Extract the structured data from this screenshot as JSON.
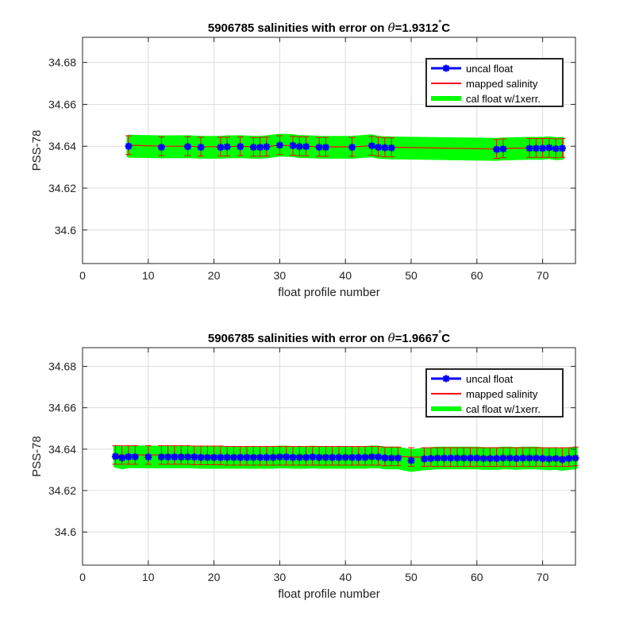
{
  "chart_data": [
    {
      "type": "line",
      "title": "5906785 salinities with error on θ=1.9312°C",
      "title_prefix": "5906785 salinities with error on ",
      "title_theta": "θ",
      "title_value": "=1.9312",
      "title_unit": "C",
      "xlabel": "float profile number",
      "ylabel": "PSS-78",
      "xlim": [
        0,
        75
      ],
      "ylim": [
        34.584,
        34.692
      ],
      "xticks": [
        0,
        10,
        20,
        30,
        40,
        50,
        60,
        70
      ],
      "yticks": [
        34.6,
        34.62,
        34.64,
        34.66,
        34.68
      ],
      "ytick_labels": [
        "34.6",
        "34.62",
        "34.64",
        "34.66",
        "34.68"
      ],
      "grid": true,
      "legend_position": "top-right",
      "series": [
        {
          "name": "uncal float",
          "color": "#0000ff",
          "marker": "asterisk",
          "x": [
            7,
            12,
            16,
            18,
            21,
            22,
            24,
            26,
            27,
            28,
            30,
            32,
            33,
            34,
            36,
            37,
            41,
            44,
            45,
            46,
            47,
            63,
            64,
            68,
            69,
            70,
            71,
            72,
            73
          ],
          "y": [
            34.64,
            34.6395,
            34.6398,
            34.6395,
            34.6395,
            34.6397,
            34.6398,
            34.6395,
            34.6395,
            34.6397,
            34.6405,
            34.6403,
            34.6398,
            34.6398,
            34.6395,
            34.6395,
            34.6395,
            34.6402,
            34.6395,
            34.6393,
            34.6392,
            34.6385,
            34.6387,
            34.639,
            34.639,
            34.639,
            34.6393,
            34.6388,
            34.639
          ]
        },
        {
          "name": "mapped salinity",
          "color": "#ff0000",
          "error": 0.0045,
          "x": [
            7,
            12,
            16,
            18,
            21,
            22,
            24,
            26,
            27,
            28,
            30,
            32,
            33,
            34,
            36,
            37,
            41,
            44,
            45,
            46,
            47,
            63,
            64,
            68,
            69,
            70,
            71,
            72,
            73
          ],
          "y": [
            34.6405,
            34.64,
            34.64,
            34.6398,
            34.6398,
            34.6398,
            34.64,
            34.6397,
            34.6397,
            34.6398,
            34.6405,
            34.6402,
            34.64,
            34.64,
            34.6397,
            34.6397,
            34.6397,
            34.6402,
            34.6398,
            34.6395,
            34.6395,
            34.6387,
            34.639,
            34.6392,
            34.6392,
            34.6392,
            34.6392,
            34.639,
            34.6392
          ]
        },
        {
          "name": "cal float w/1xerr.",
          "color": "#00ff00",
          "error": 0.0045,
          "x": [
            7,
            12,
            16,
            18,
            21,
            22,
            24,
            26,
            27,
            28,
            30,
            32,
            33,
            34,
            36,
            37,
            41,
            44,
            45,
            46,
            47,
            63,
            64,
            68,
            69,
            70,
            71,
            72,
            73
          ],
          "y": [
            34.64,
            34.6397,
            34.6398,
            34.6395,
            34.6395,
            34.6397,
            34.6398,
            34.6395,
            34.6395,
            34.6397,
            34.6405,
            34.6403,
            34.6398,
            34.6398,
            34.6395,
            34.6395,
            34.6395,
            34.6402,
            34.6395,
            34.6393,
            34.6392,
            34.6385,
            34.6387,
            34.639,
            34.639,
            34.639,
            34.6393,
            34.6388,
            34.639
          ]
        }
      ]
    },
    {
      "type": "line",
      "title": "5906785 salinities with error on θ=1.9667°C",
      "title_prefix": "5906785 salinities with error on ",
      "title_theta": "θ",
      "title_value": "=1.9667",
      "title_unit": "C",
      "xlabel": "float profile number",
      "ylabel": "PSS-78",
      "xlim": [
        0,
        75
      ],
      "ylim": [
        34.584,
        34.689
      ],
      "xticks": [
        0,
        10,
        20,
        30,
        40,
        50,
        60,
        70
      ],
      "yticks": [
        34.6,
        34.62,
        34.64,
        34.66,
        34.68
      ],
      "ytick_labels": [
        "34.6",
        "34.62",
        "34.64",
        "34.66",
        "34.68"
      ],
      "grid": true,
      "legend_position": "top-right",
      "series": [
        {
          "name": "uncal float",
          "color": "#0000ff",
          "marker": "asterisk",
          "x": [
            5,
            6,
            7,
            8,
            10,
            12,
            13,
            14,
            15,
            16,
            17,
            18,
            19,
            20,
            21,
            22,
            23,
            24,
            25,
            26,
            27,
            28,
            29,
            30,
            31,
            32,
            33,
            34,
            35,
            36,
            37,
            38,
            39,
            40,
            41,
            42,
            43,
            44,
            45,
            46,
            47,
            48,
            50,
            52,
            53,
            54,
            55,
            56,
            57,
            58,
            59,
            60,
            61,
            62,
            63,
            64,
            65,
            66,
            67,
            68,
            69,
            70,
            71,
            72,
            73,
            74,
            75
          ],
          "y": [
            34.6365,
            34.6358,
            34.6363,
            34.6363,
            34.6362,
            34.6362,
            34.6362,
            34.6362,
            34.6362,
            34.6362,
            34.6362,
            34.636,
            34.636,
            34.636,
            34.636,
            34.636,
            34.636,
            34.636,
            34.636,
            34.636,
            34.636,
            34.636,
            34.636,
            34.6362,
            34.6362,
            34.636,
            34.636,
            34.636,
            34.6362,
            34.636,
            34.636,
            34.636,
            34.636,
            34.636,
            34.636,
            34.636,
            34.636,
            34.6363,
            34.6362,
            34.6358,
            34.6357,
            34.6357,
            34.6345,
            34.6353,
            34.6355,
            34.6357,
            34.6357,
            34.6357,
            34.6357,
            34.6357,
            34.6357,
            34.6357,
            34.6355,
            34.6355,
            34.6355,
            34.6357,
            34.6357,
            34.6355,
            34.6357,
            34.6357,
            34.6357,
            34.6355,
            34.6353,
            34.6355,
            34.635,
            34.6355,
            34.6357
          ]
        },
        {
          "name": "mapped salinity",
          "color": "#ff0000",
          "error": 0.0045,
          "x": [
            5,
            6,
            7,
            8,
            10,
            12,
            13,
            14,
            15,
            16,
            17,
            18,
            19,
            20,
            21,
            22,
            23,
            24,
            25,
            26,
            27,
            28,
            29,
            30,
            31,
            32,
            33,
            34,
            35,
            36,
            37,
            38,
            39,
            40,
            41,
            42,
            43,
            44,
            45,
            46,
            47,
            48,
            50,
            52,
            53,
            54,
            55,
            56,
            57,
            58,
            59,
            60,
            61,
            62,
            63,
            64,
            65,
            66,
            67,
            68,
            69,
            70,
            71,
            72,
            73,
            74,
            75
          ],
          "y": [
            34.6372,
            34.6372,
            34.6372,
            34.6372,
            34.6372,
            34.6372,
            34.6372,
            34.6372,
            34.6372,
            34.6372,
            34.637,
            34.637,
            34.637,
            34.637,
            34.637,
            34.6368,
            34.6368,
            34.6368,
            34.6368,
            34.6368,
            34.6368,
            34.6368,
            34.6368,
            34.6368,
            34.6368,
            34.6368,
            34.6368,
            34.6368,
            34.6368,
            34.6368,
            34.6368,
            34.6368,
            34.6368,
            34.6368,
            34.6368,
            34.6368,
            34.6368,
            34.6368,
            34.6368,
            34.6365,
            34.6365,
            34.6365,
            34.6362,
            34.6362,
            34.6362,
            34.6362,
            34.6362,
            34.6362,
            34.6362,
            34.6362,
            34.6362,
            34.6362,
            34.6362,
            34.6362,
            34.6362,
            34.6362,
            34.6362,
            34.6362,
            34.6362,
            34.6362,
            34.6362,
            34.6362,
            34.6362,
            34.6362,
            34.6362,
            34.6362,
            34.6365
          ]
        },
        {
          "name": "cal float w/1xerr.",
          "color": "#00ff00",
          "error": 0.0045,
          "x": [
            5,
            6,
            7,
            8,
            10,
            12,
            13,
            14,
            15,
            16,
            17,
            18,
            19,
            20,
            21,
            22,
            23,
            24,
            25,
            26,
            27,
            28,
            29,
            30,
            31,
            32,
            33,
            34,
            35,
            36,
            37,
            38,
            39,
            40,
            41,
            42,
            43,
            44,
            45,
            46,
            47,
            48,
            50,
            52,
            53,
            54,
            55,
            56,
            57,
            58,
            59,
            60,
            61,
            62,
            63,
            64,
            65,
            66,
            67,
            68,
            69,
            70,
            71,
            72,
            73,
            74,
            75
          ],
          "y": [
            34.6365,
            34.6358,
            34.6363,
            34.6363,
            34.6362,
            34.6362,
            34.6362,
            34.6362,
            34.6362,
            34.6362,
            34.6362,
            34.636,
            34.636,
            34.636,
            34.636,
            34.636,
            34.636,
            34.636,
            34.636,
            34.636,
            34.636,
            34.636,
            34.636,
            34.6362,
            34.6362,
            34.636,
            34.636,
            34.636,
            34.6362,
            34.636,
            34.636,
            34.636,
            34.636,
            34.636,
            34.636,
            34.636,
            34.636,
            34.6363,
            34.6362,
            34.6358,
            34.6357,
            34.6357,
            34.6345,
            34.6353,
            34.6355,
            34.6357,
            34.6357,
            34.6357,
            34.6357,
            34.6357,
            34.6357,
            34.6357,
            34.6355,
            34.6355,
            34.6355,
            34.6357,
            34.6357,
            34.6355,
            34.6357,
            34.6357,
            34.6357,
            34.6355,
            34.6353,
            34.6355,
            34.635,
            34.6355,
            34.6357
          ]
        }
      ]
    }
  ]
}
